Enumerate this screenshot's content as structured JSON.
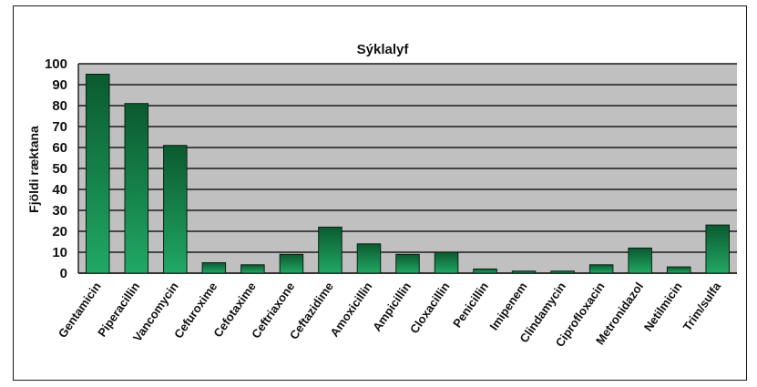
{
  "chart_data": {
    "type": "bar",
    "title": "Sýklalyf",
    "ylabel": "Fjöldi rækt­ana",
    "xlabel": "",
    "ylim": [
      0,
      100
    ],
    "yticks": [
      "0",
      "10",
      "20",
      "30",
      "40",
      "50",
      "60",
      "70",
      "80",
      "90",
      "100"
    ],
    "grid": true,
    "legend": "none",
    "categories": [
      "Gentamicin",
      "Piperacillin",
      "Vancomycin",
      "Cefuroxime",
      "Cefotaxime",
      "Ceftriaxone",
      "Ceftazidime",
      "Amoxicillin",
      "Ampicillin",
      "Cloxacillin",
      "Penicillin",
      "Imipenem",
      "Clindamycin",
      "Ciprofloxacin",
      "Metronidazol",
      "Netilmicin",
      "Trim/sulfa"
    ],
    "values": [
      95,
      81,
      61,
      5,
      4,
      9,
      22,
      14,
      9,
      10,
      2,
      1,
      1,
      4,
      12,
      3,
      23
    ],
    "colors": {
      "plot_bg": "#c0c0c0",
      "grid": "#1a1a1a",
      "bar_top": "#0b5a30",
      "bar_bottom": "#21a864",
      "bar_edge": "#0a1f12"
    }
  }
}
